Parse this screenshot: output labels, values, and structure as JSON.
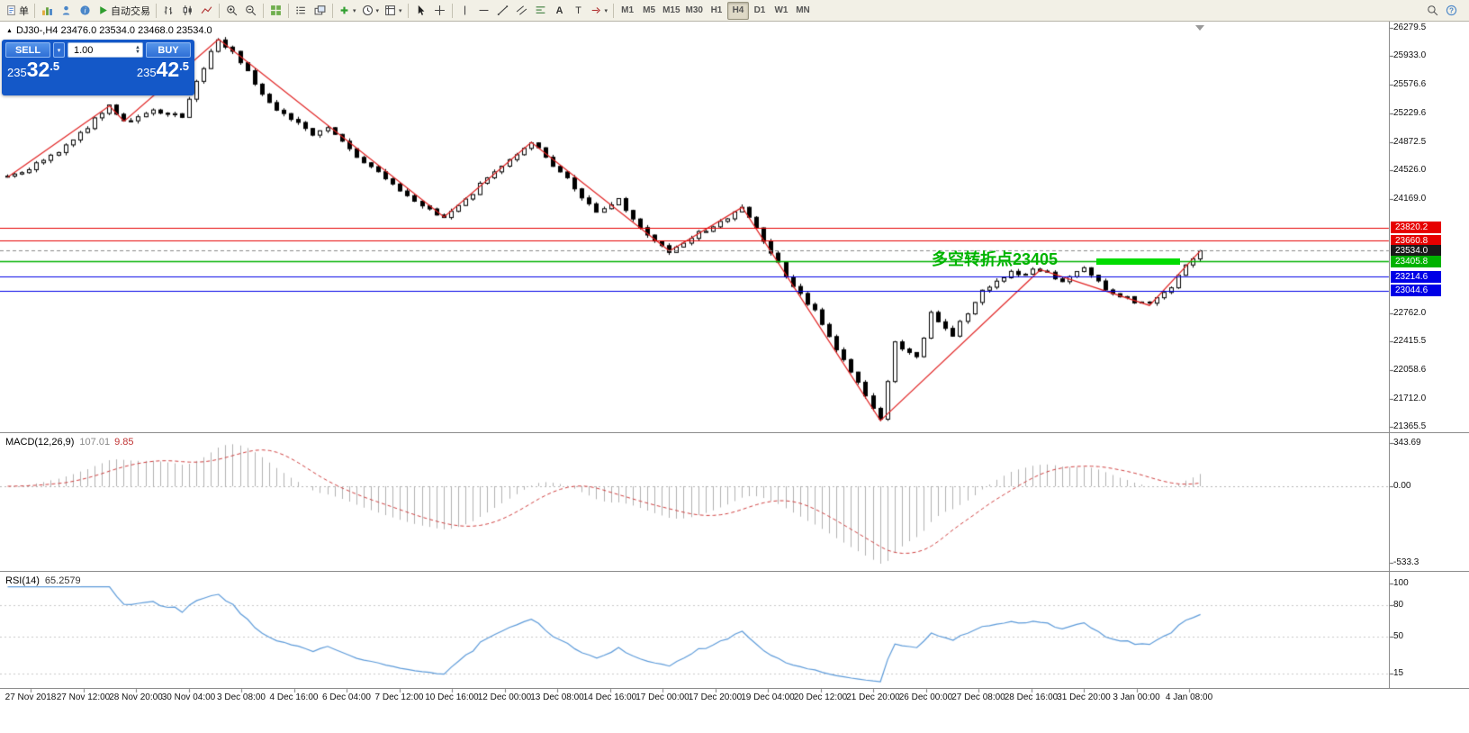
{
  "toolbar": {
    "buttons": [
      {
        "name": "new-order",
        "icon": "page",
        "label": "单"
      },
      {
        "sep": true
      },
      {
        "name": "market-watch",
        "icon": "chart"
      },
      {
        "name": "navigator",
        "icon": "person"
      },
      {
        "name": "terminal",
        "icon": "info"
      },
      {
        "name": "autotrading",
        "icon": "play",
        "label": "自动交易"
      },
      {
        "sep": true
      },
      {
        "name": "bar-chart",
        "icon": "bars"
      },
      {
        "name": "candlestick-chart",
        "icon": "candles"
      },
      {
        "name": "line-chart",
        "icon": "linechart"
      },
      {
        "sep": true
      },
      {
        "name": "zoom-in",
        "icon": "zoomin"
      },
      {
        "name": "zoom-out",
        "icon": "zoomout"
      },
      {
        "sep": true
      },
      {
        "name": "tile-windows",
        "icon": "grid"
      },
      {
        "sep": true
      },
      {
        "name": "indicators-list",
        "icon": "list"
      },
      {
        "name": "cascade-windows",
        "icon": "cascade"
      },
      {
        "sep": true
      },
      {
        "name": "add-indicator",
        "icon": "plus",
        "dd": true
      },
      {
        "name": "periods",
        "icon": "clock",
        "dd": true
      },
      {
        "name": "chart-templates",
        "icon": "template",
        "dd": true
      },
      {
        "sep": true
      },
      {
        "name": "cursor",
        "icon": "cursor"
      },
      {
        "name": "crosshair",
        "icon": "crosshair"
      },
      {
        "sep": true
      },
      {
        "name": "vertical-line",
        "icon": "vline"
      },
      {
        "name": "horizontal-line",
        "icon": "hline"
      },
      {
        "name": "trendline",
        "icon": "trend"
      },
      {
        "name": "equidistant-channel",
        "icon": "channel"
      },
      {
        "name": "fibonacci-retracement",
        "icon": "fibo"
      },
      {
        "name": "text",
        "icon": "textA"
      },
      {
        "name": "text-label",
        "icon": "labelT"
      },
      {
        "name": "arrows",
        "icon": "arrowdd",
        "dd": true
      },
      {
        "sep": true
      }
    ],
    "timeframes": [
      "M1",
      "M5",
      "M15",
      "M30",
      "H1",
      "H4",
      "D1",
      "W1",
      "MN"
    ],
    "active_timeframe": "H4",
    "right_buttons": [
      {
        "name": "search",
        "icon": "search"
      },
      {
        "name": "help",
        "icon": "question"
      }
    ]
  },
  "chart": {
    "symbol_line": "DJ30-,H4  23476.0 23534.0 23468.0 23534.0",
    "annotation": {
      "text": "多空转折点23405",
      "price": 23405.8,
      "color": "#00b400"
    }
  },
  "trade_panel": {
    "sell_label": "SELL",
    "buy_label": "BUY",
    "volume": "1.00",
    "sell_price": {
      "full": "23532.5",
      "prefix": "235",
      "big": "32",
      "sup": ".5"
    },
    "buy_price": {
      "full": "23542.5",
      "prefix": "235",
      "big": "42",
      "sup": ".5"
    }
  },
  "chart_data": {
    "type": "candlestick",
    "symbol": "DJ30-",
    "timeframe": "H4",
    "ohlc_readout": {
      "open": 23476.0,
      "high": 23534.0,
      "low": 23468.0,
      "close": 23534.0
    },
    "price_range": [
      21320,
      26360
    ],
    "bar_count": 165,
    "bull_color": "#ffffff",
    "bear_color": "#000000",
    "zigzag_color": "#e02020",
    "price_axis_labels": [
      "26279.5",
      "25933.0",
      "25576.6",
      "25229.6",
      "24872.5",
      "24526.0",
      "24169.0",
      "22762.0",
      "22415.5",
      "22058.6",
      "21712.0",
      "21365.5"
    ],
    "level_lines": [
      {
        "price": 23820.2,
        "label": "23820.2",
        "color": "#e60000",
        "type": "resistance"
      },
      {
        "price": 23660.8,
        "label": "23660.8",
        "color": "#e60000",
        "type": "resistance"
      },
      {
        "price": 23534.0,
        "label": "23534.0",
        "color": "#1a1a1a",
        "type": "current-price"
      },
      {
        "price": 23405.8,
        "label": "23405.8",
        "color": "#00b200",
        "type": "pivot"
      },
      {
        "price": 23214.6,
        "label": "23214.6",
        "color": "#0000e6",
        "type": "support"
      },
      {
        "price": 23044.6,
        "label": "23044.6",
        "color": "#0000e6",
        "type": "support"
      }
    ],
    "highlight_segment": {
      "price": 23405.8,
      "color": "#00dc00"
    },
    "anchor_path": [
      [
        0,
        24450
      ],
      [
        4,
        24580
      ],
      [
        9,
        24900
      ],
      [
        14,
        25320
      ],
      [
        16,
        25130
      ],
      [
        20,
        25260
      ],
      [
        24,
        25200
      ],
      [
        27,
        25800
      ],
      [
        29,
        26140
      ],
      [
        31,
        26000
      ],
      [
        36,
        25350
      ],
      [
        42,
        24960
      ],
      [
        44,
        25050
      ],
      [
        48,
        24700
      ],
      [
        56,
        24150
      ],
      [
        60,
        23960
      ],
      [
        64,
        24250
      ],
      [
        68,
        24600
      ],
      [
        72,
        24870
      ],
      [
        77,
        24400
      ],
      [
        81,
        24000
      ],
      [
        84,
        24150
      ],
      [
        88,
        23700
      ],
      [
        91,
        23540
      ],
      [
        95,
        23750
      ],
      [
        98,
        23900
      ],
      [
        101,
        24070
      ],
      [
        105,
        23500
      ],
      [
        108,
        23100
      ],
      [
        111,
        22800
      ],
      [
        114,
        22300
      ],
      [
        117,
        21900
      ],
      [
        120,
        21440
      ],
      [
        122,
        22400
      ],
      [
        125,
        22200
      ],
      [
        127,
        22750
      ],
      [
        130,
        22500
      ],
      [
        134,
        23050
      ],
      [
        138,
        23250
      ],
      [
        142,
        23300
      ],
      [
        145,
        23150
      ],
      [
        148,
        23330
      ],
      [
        151,
        23050
      ],
      [
        154,
        22950
      ],
      [
        157,
        22870
      ],
      [
        160,
        23100
      ],
      [
        162,
        23350
      ],
      [
        164,
        23534
      ]
    ],
    "zigzag_points": [
      [
        0,
        24440
      ],
      [
        14,
        25320
      ],
      [
        16,
        25130
      ],
      [
        29,
        26140
      ],
      [
        60,
        23950
      ],
      [
        72,
        24870
      ],
      [
        91,
        23530
      ],
      [
        101,
        24070
      ],
      [
        120,
        21440
      ],
      [
        142,
        23300
      ],
      [
        157,
        22860
      ],
      [
        164,
        23534
      ]
    ],
    "time_labels": [
      "27 Nov 2018",
      "27 Nov 12:00",
      "28 Nov 20:00",
      "30 Nov 04:00",
      "3 Dec 08:00",
      "4 Dec 16:00",
      "6 Dec 04:00",
      "7 Dec 12:00",
      "10 Dec 16:00",
      "12 Dec 00:00",
      "13 Dec 08:00",
      "14 Dec 16:00",
      "17 Dec 00:00",
      "17 Dec 20:00",
      "19 Dec 04:00",
      "20 Dec 12:00",
      "21 Dec 20:00",
      "26 Dec 00:00",
      "27 Dec 08:00",
      "28 Dec 16:00",
      "31 Dec 20:00",
      "3 Jan 00:00",
      "4 Jan 08:00"
    ],
    "indicators": {
      "macd": {
        "title": "MACD(12,26,9)",
        "value_main": "107.01",
        "value_signal": "9.85",
        "params": [
          12,
          26,
          9
        ],
        "axis_labels": [
          "343.69",
          "0.00",
          "-533.3"
        ],
        "histogram_color": "#b0b0b0",
        "signal_color": "#cf4040"
      },
      "rsi": {
        "title": "RSI(14)",
        "value": "65.2579",
        "period": 14,
        "axis_labels": [
          "100",
          "80",
          "50",
          "15"
        ],
        "levels": [
          80,
          50,
          15
        ],
        "line_color": "#5c9ad9"
      }
    }
  }
}
